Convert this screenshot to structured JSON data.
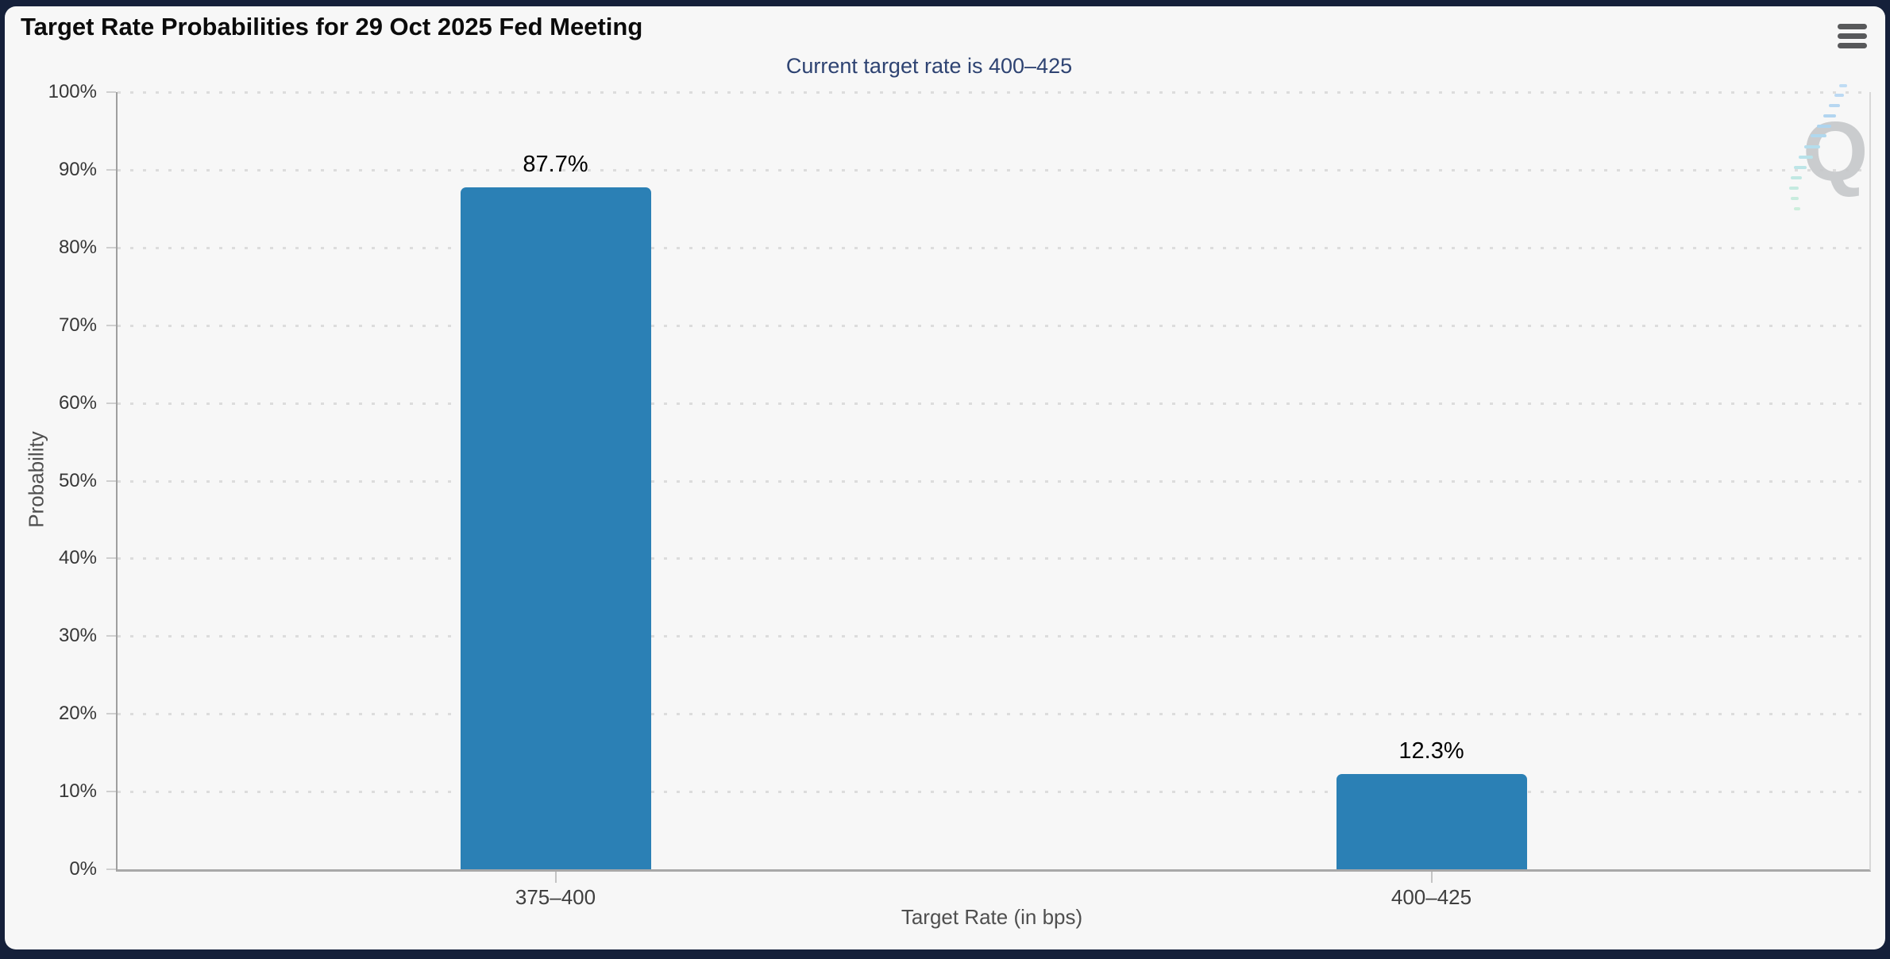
{
  "chart_data": {
    "type": "bar",
    "title": "Target Rate Probabilities for 29 Oct 2025 Fed Meeting",
    "subtitle": "Current target rate is 400–425",
    "categories": [
      "375–400",
      "400–425"
    ],
    "values": [
      87.7,
      12.3
    ],
    "value_labels": [
      "87.7%",
      "12.3%"
    ],
    "xlabel": "Target Rate (in bps)",
    "ylabel": "Probability",
    "ylim": [
      0,
      100
    ],
    "ytick_step": 10,
    "yticks": [
      "0%",
      "10%",
      "20%",
      "30%",
      "40%",
      "50%",
      "60%",
      "70%",
      "80%",
      "90%",
      "100%"
    ],
    "grid": "horizontal-dotted",
    "legend": "none",
    "watermark_letter": "Q"
  },
  "icons": {
    "menu": "hamburger-menu-icon"
  },
  "theme": {
    "bar_color": "#2b80b5",
    "subtitle_color": "#2e4372",
    "panel_background": "#f7f7f7",
    "page_background": "#15203a"
  }
}
